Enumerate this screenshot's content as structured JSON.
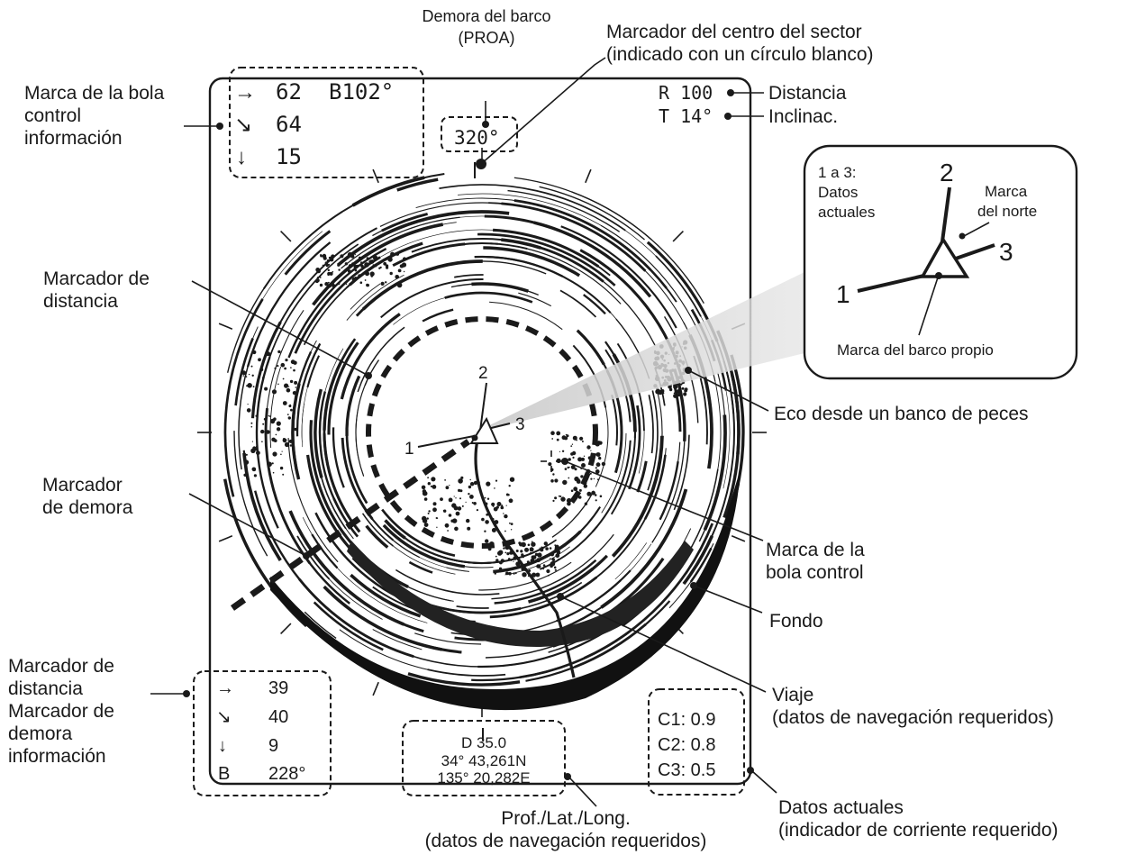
{
  "screen": {
    "top_left_info": {
      "row1_arrow": "→",
      "row1_value": "62",
      "row1_bearing": "B102°",
      "row2_arrow": "↘",
      "row2_value": "64",
      "row3_arrow": "↓",
      "row3_value": "15"
    },
    "heading_box": "320°",
    "range": "R 100",
    "tilt": "T 14°",
    "own_ship_numbers": {
      "n1": "1",
      "n2": "2",
      "n3": "3"
    },
    "bottom_left_info": {
      "row1_arrow": "→",
      "row1_value": "39",
      "row2_arrow": "↘",
      "row2_value": "40",
      "row3_arrow": "↓",
      "row3_value": "9",
      "row4_label": "B",
      "row4_value": "228°"
    },
    "nav_data": {
      "depth": "D 35.0",
      "lat": "34°  43,261N",
      "lon": "135°  20,282E"
    },
    "current_data": {
      "c1": "C1: 0.9",
      "c2": "C2: 0.8",
      "c3": "C3: 0.5"
    }
  },
  "callout": {
    "title_line1": "1 a 3:",
    "title_line2": "Datos",
    "title_line3": "actuales",
    "n1": "1",
    "n2": "2",
    "n3": "3",
    "north_mark_line1": "Marca",
    "north_mark_line2": "del norte",
    "own_ship_mark": "Marca del barco propio"
  },
  "labels": {
    "ship_heading_line1": "Demora del barco",
    "ship_heading_line2": "(PROA)",
    "sector_center_line1": "Marcador del centro del sector",
    "sector_center_line2": "(indicado con un círculo blanco)",
    "trackball_info_line1": "Marca de la bola",
    "trackball_info_line2": "control",
    "trackball_info_line3": "información",
    "range_label": "Distancia",
    "tilt_label": "Inclinac.",
    "range_marker_line1": "Marcador de",
    "range_marker_line2": "distancia",
    "fish_school": "Eco desde un banco de peces",
    "bearing_marker_line1": "Marcador",
    "bearing_marker_line2": "de demora",
    "trackball_mark_line1": "Marca de la",
    "trackball_mark_line2": "bola control",
    "bottom": "Fondo",
    "track_line1": "Viaje",
    "track_line2": "(datos de navegación requeridos)",
    "rb_info_line1": "Marcador de",
    "rb_info_line2": "distancia",
    "rb_info_line3": "Marcador de",
    "rb_info_line4": "demora",
    "rb_info_line5": "información",
    "depth_latlon_line1": "Prof./Lat./Long.",
    "depth_latlon_line2": "(datos de navegación requeridos)",
    "current_data_line1": "Datos actuales",
    "current_data_line2": "(indicador de corriente requerido)"
  }
}
